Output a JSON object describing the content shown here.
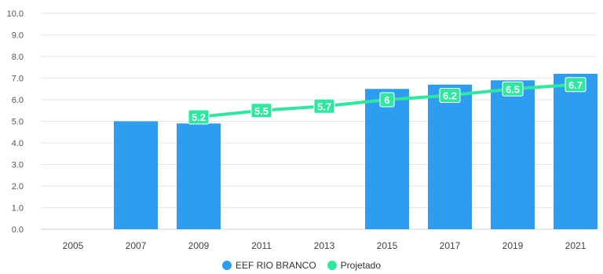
{
  "chart_data": {
    "type": "bar",
    "categories": [
      "2005",
      "2007",
      "2009",
      "2011",
      "2013",
      "2015",
      "2017",
      "2019",
      "2021"
    ],
    "series": [
      {
        "name": "EEF RIO BRANCO",
        "type": "bar",
        "color": "#2e9df0",
        "values": [
          null,
          5.0,
          4.9,
          null,
          null,
          6.5,
          6.7,
          6.9,
          7.2
        ]
      },
      {
        "name": "Projetado",
        "type": "line",
        "color": "#2ee8a0",
        "values": [
          null,
          null,
          5.2,
          5.5,
          5.7,
          6,
          6.2,
          6.5,
          6.7
        ],
        "labels": [
          null,
          null,
          "5.2",
          "5.5",
          "5.7",
          "6",
          "6.2",
          "6.5",
          "6.7"
        ]
      }
    ],
    "y_ticks": [
      "0.0",
      "1.0",
      "2.0",
      "3.0",
      "4.0",
      "5.0",
      "6.0",
      "7.0",
      "8.0",
      "9.0",
      "10.0"
    ],
    "ylim": [
      0,
      10
    ],
    "grid": true,
    "legend_position": "bottom-center",
    "title": "",
    "xlabel": "",
    "ylabel": ""
  }
}
